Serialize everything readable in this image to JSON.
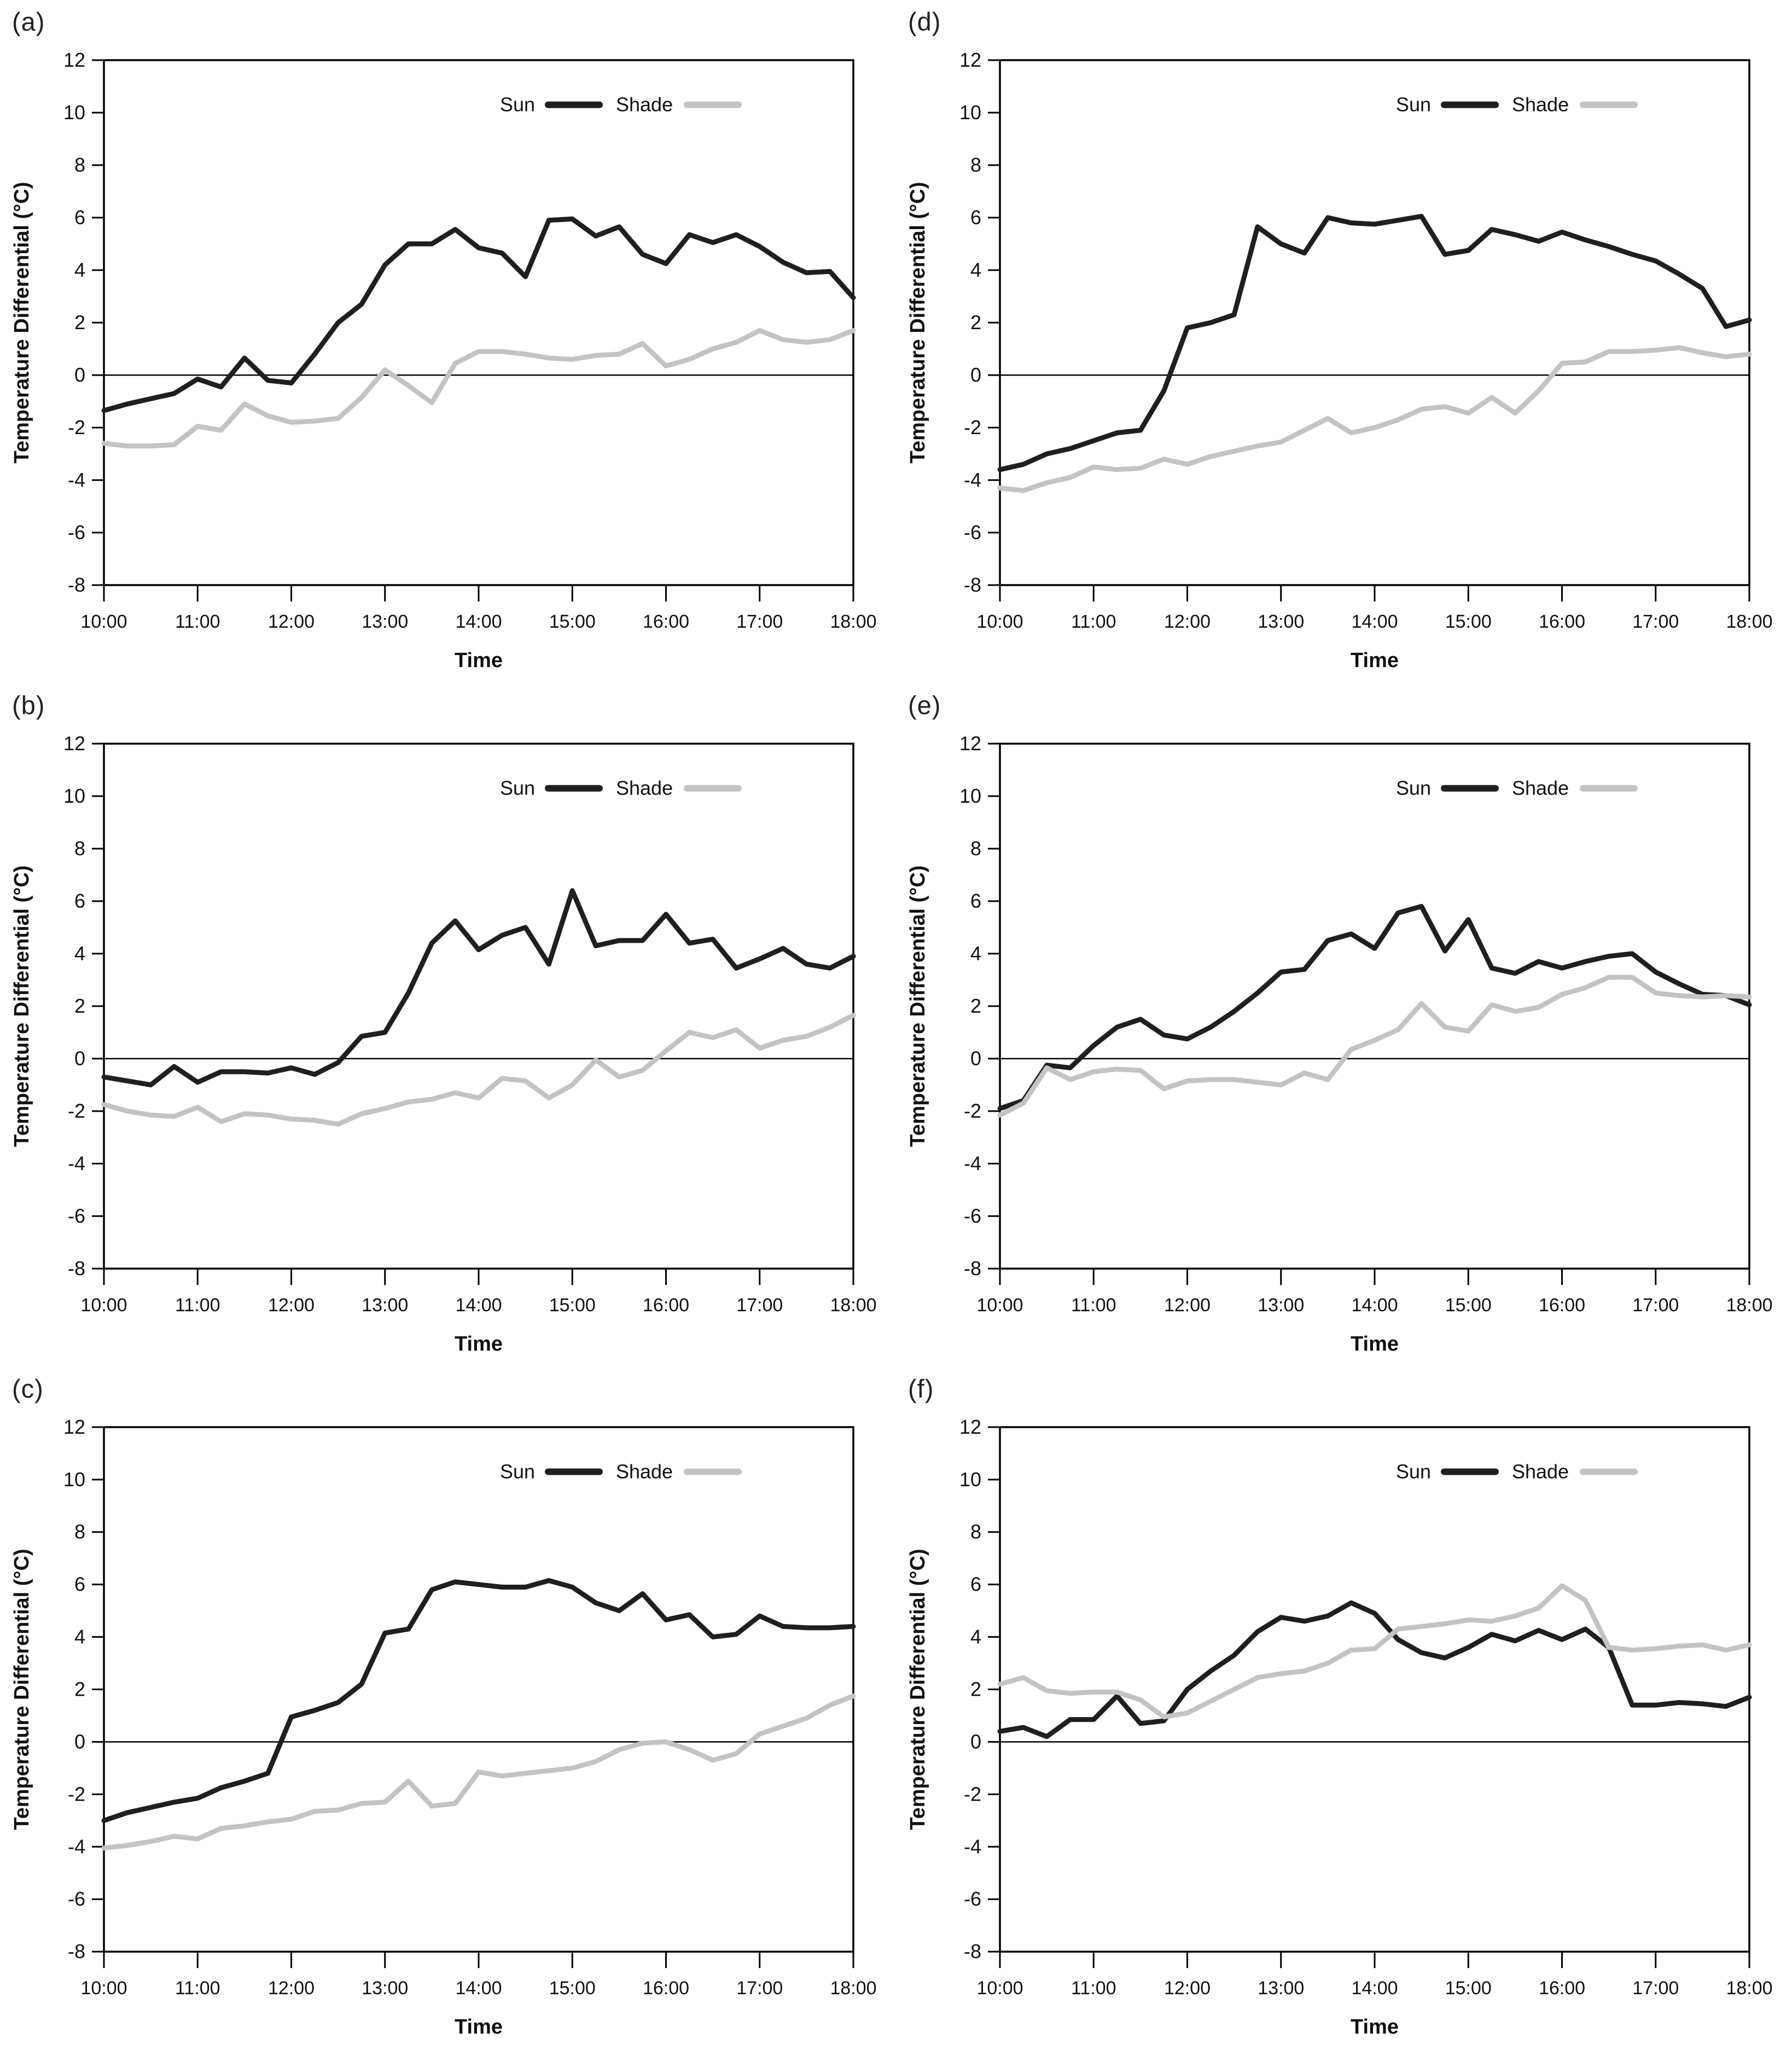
{
  "figure": {
    "description": "Six line charts comparing sun and shade temperature differentials over time",
    "colors": {
      "sun": "#1f1f1f",
      "shade": "#c3c3c3",
      "axis": "#000000"
    }
  },
  "chart_data": [
    {
      "type": "line",
      "letter": "(a)",
      "title": "",
      "xlabel": "Time",
      "ylabel": "Temperature Differential (°C)",
      "ylim": [
        -8,
        12
      ],
      "ytick_step": 2,
      "yticklabels": [
        "12",
        "10",
        "8",
        "6",
        "4",
        "2",
        "0",
        "-2",
        "-4",
        "-6",
        "-8"
      ],
      "xticklabels": [
        "10:00",
        "11:00",
        "12:00",
        "13:00",
        "14:00",
        "15:00",
        "16:00",
        "17:00",
        "18:00"
      ],
      "x_interval_minutes": 15,
      "grid": false,
      "legend_position": "top-center",
      "legend": [
        "Sun",
        "Shade"
      ],
      "series": [
        {
          "name": "Sun",
          "color": "#1f1f1f",
          "values": [
            -1.35,
            -1.1,
            -0.9,
            -0.7,
            -0.15,
            -0.45,
            0.65,
            -0.2,
            -0.3,
            0.8,
            2.0,
            2.7,
            4.2,
            5.0,
            5.0,
            5.55,
            4.85,
            4.65,
            3.75,
            5.9,
            5.95,
            5.3,
            5.65,
            4.6,
            4.25,
            5.35,
            5.05,
            5.35,
            4.9,
            4.3,
            3.9,
            3.95,
            2.95
          ]
        },
        {
          "name": "Shade",
          "color": "#c3c3c3",
          "values": [
            -2.6,
            -2.7,
            -2.7,
            -2.65,
            -1.95,
            -2.1,
            -1.1,
            -1.55,
            -1.8,
            -1.75,
            -1.65,
            -0.85,
            0.2,
            -0.4,
            -1.05,
            0.45,
            0.9,
            0.9,
            0.8,
            0.65,
            0.6,
            0.75,
            0.8,
            1.2,
            0.35,
            0.6,
            1.0,
            1.25,
            1.7,
            1.35,
            1.25,
            1.35,
            1.7
          ]
        }
      ]
    },
    {
      "type": "line",
      "letter": "(b)",
      "title": "",
      "xlabel": "Time",
      "ylabel": "Temperature Differential (°C)",
      "ylim": [
        -8,
        12
      ],
      "ytick_step": 2,
      "yticklabels": [
        "12",
        "10",
        "8",
        "6",
        "4",
        "2",
        "0",
        "-2",
        "-4",
        "-6",
        "-8"
      ],
      "xticklabels": [
        "10:00",
        "11:00",
        "12:00",
        "13:00",
        "14:00",
        "15:00",
        "16:00",
        "17:00",
        "18:00"
      ],
      "x_interval_minutes": 15,
      "grid": false,
      "legend_position": "top-center",
      "legend": [
        "Sun",
        "Shade"
      ],
      "series": [
        {
          "name": "Sun",
          "color": "#1f1f1f",
          "values": [
            -0.7,
            -0.85,
            -1.0,
            -0.3,
            -0.9,
            -0.5,
            -0.5,
            -0.55,
            -0.35,
            -0.6,
            -0.15,
            0.85,
            1.0,
            2.5,
            4.4,
            5.25,
            4.15,
            4.7,
            5.0,
            3.6,
            6.4,
            4.3,
            4.5,
            4.5,
            5.5,
            4.4,
            4.55,
            3.45,
            3.8,
            4.2,
            3.6,
            3.45,
            3.9
          ]
        },
        {
          "name": "Shade",
          "color": "#c3c3c3",
          "values": [
            -1.75,
            -2.0,
            -2.15,
            -2.2,
            -1.85,
            -2.4,
            -2.1,
            -2.15,
            -2.3,
            -2.35,
            -2.5,
            -2.1,
            -1.9,
            -1.65,
            -1.55,
            -1.3,
            -1.5,
            -0.75,
            -0.85,
            -1.5,
            -1.0,
            -0.05,
            -0.7,
            -0.45,
            0.3,
            1.0,
            0.8,
            1.1,
            0.4,
            0.7,
            0.85,
            1.2,
            1.65
          ]
        }
      ]
    },
    {
      "type": "line",
      "letter": "(c)",
      "title": "",
      "xlabel": "Time",
      "ylabel": "Temperature Differential (°C)",
      "ylim": [
        -8,
        12
      ],
      "ytick_step": 2,
      "yticklabels": [
        "12",
        "10",
        "8",
        "6",
        "4",
        "2",
        "0",
        "-2",
        "-4",
        "-6",
        "-8"
      ],
      "xticklabels": [
        "10:00",
        "11:00",
        "12:00",
        "13:00",
        "14:00",
        "15:00",
        "16:00",
        "17:00",
        "18:00"
      ],
      "x_interval_minutes": 15,
      "grid": false,
      "legend_position": "top-center",
      "legend": [
        "Sun",
        "Shade"
      ],
      "series": [
        {
          "name": "Sun",
          "color": "#1f1f1f",
          "values": [
            -3.0,
            -2.7,
            -2.5,
            -2.3,
            -2.15,
            -1.75,
            -1.5,
            -1.2,
            0.95,
            1.2,
            1.5,
            2.2,
            4.15,
            4.3,
            5.8,
            6.1,
            6.0,
            5.9,
            5.9,
            6.15,
            5.9,
            5.3,
            5.0,
            5.65,
            4.65,
            4.85,
            4.0,
            4.1,
            4.8,
            4.4,
            4.35,
            4.35,
            4.4
          ]
        },
        {
          "name": "Shade",
          "color": "#c3c3c3",
          "values": [
            -4.05,
            -3.95,
            -3.8,
            -3.6,
            -3.7,
            -3.3,
            -3.2,
            -3.05,
            -2.95,
            -2.65,
            -2.6,
            -2.35,
            -2.3,
            -1.5,
            -2.45,
            -2.35,
            -1.15,
            -1.3,
            -1.2,
            -1.1,
            -1.0,
            -0.75,
            -0.3,
            -0.05,
            0.0,
            -0.3,
            -0.7,
            -0.45,
            0.3,
            0.6,
            0.9,
            1.4,
            1.75
          ]
        }
      ]
    },
    {
      "type": "line",
      "letter": "(d)",
      "title": "",
      "xlabel": "Time",
      "ylabel": "Temperature Differential (°C)",
      "ylim": [
        -8,
        12
      ],
      "ytick_step": 2,
      "yticklabels": [
        "12",
        "10",
        "8",
        "6",
        "4",
        "2",
        "0",
        "-2",
        "-4",
        "-6",
        "-8"
      ],
      "xticklabels": [
        "10:00",
        "11:00",
        "12:00",
        "13:00",
        "14:00",
        "15:00",
        "16:00",
        "17:00",
        "18:00"
      ],
      "x_interval_minutes": 15,
      "grid": false,
      "legend_position": "top-center",
      "legend": [
        "Sun",
        "Shade"
      ],
      "series": [
        {
          "name": "Sun",
          "color": "#1f1f1f",
          "values": [
            -3.6,
            -3.4,
            -3.0,
            -2.8,
            -2.5,
            -2.2,
            -2.1,
            -0.6,
            1.8,
            2.0,
            2.3,
            5.65,
            5.0,
            4.65,
            6.0,
            5.8,
            5.75,
            5.9,
            6.05,
            4.6,
            4.75,
            5.55,
            5.35,
            5.1,
            5.45,
            5.15,
            4.9,
            4.6,
            4.35,
            3.85,
            3.3,
            1.85,
            2.1
          ]
        },
        {
          "name": "Shade",
          "color": "#c3c3c3",
          "values": [
            -4.3,
            -4.4,
            -4.1,
            -3.9,
            -3.5,
            -3.6,
            -3.55,
            -3.2,
            -3.4,
            -3.1,
            -2.9,
            -2.7,
            -2.55,
            -2.1,
            -1.65,
            -2.2,
            -2.0,
            -1.7,
            -1.3,
            -1.2,
            -1.45,
            -0.85,
            -1.45,
            -0.6,
            0.45,
            0.5,
            0.9,
            0.9,
            0.95,
            1.05,
            0.85,
            0.7,
            0.8
          ]
        }
      ]
    },
    {
      "type": "line",
      "letter": "(e)",
      "title": "",
      "xlabel": "Time",
      "ylabel": "Temperature Differential (°C)",
      "ylim": [
        -8,
        12
      ],
      "ytick_step": 2,
      "yticklabels": [
        "12",
        "10",
        "8",
        "6",
        "4",
        "2",
        "0",
        "-2",
        "-4",
        "-6",
        "-8"
      ],
      "xticklabels": [
        "10:00",
        "11:00",
        "12:00",
        "13:00",
        "14:00",
        "15:00",
        "16:00",
        "17:00",
        "18:00"
      ],
      "x_interval_minutes": 15,
      "grid": false,
      "legend_position": "top-center",
      "legend": [
        "Sun",
        "Shade"
      ],
      "series": [
        {
          "name": "Sun",
          "color": "#1f1f1f",
          "values": [
            -1.9,
            -1.6,
            -0.25,
            -0.35,
            0.5,
            1.2,
            1.5,
            0.9,
            0.75,
            1.2,
            1.8,
            2.5,
            3.3,
            3.4,
            4.5,
            4.75,
            4.2,
            5.55,
            5.8,
            4.1,
            5.3,
            3.45,
            3.25,
            3.7,
            3.45,
            3.7,
            3.9,
            4.0,
            3.3,
            2.85,
            2.45,
            2.4,
            2.05
          ]
        },
        {
          "name": "Shade",
          "color": "#c3c3c3",
          "values": [
            -2.15,
            -1.7,
            -0.35,
            -0.8,
            -0.5,
            -0.4,
            -0.45,
            -1.15,
            -0.85,
            -0.8,
            -0.8,
            -0.9,
            -1.0,
            -0.55,
            -0.8,
            0.35,
            0.7,
            1.1,
            2.1,
            1.2,
            1.05,
            2.05,
            1.8,
            1.95,
            2.45,
            2.7,
            3.1,
            3.1,
            2.5,
            2.4,
            2.35,
            2.4,
            2.35
          ]
        }
      ]
    },
    {
      "type": "line",
      "letter": "(f)",
      "title": "",
      "xlabel": "Time",
      "ylabel": "Temperature Differential (°C)",
      "ylim": [
        -8,
        12
      ],
      "ytick_step": 2,
      "yticklabels": [
        "12",
        "10",
        "8",
        "6",
        "4",
        "2",
        "0",
        "-2",
        "-4",
        "-6",
        "-8"
      ],
      "xticklabels": [
        "10:00",
        "11:00",
        "12:00",
        "13:00",
        "14:00",
        "15:00",
        "16:00",
        "17:00",
        "18:00"
      ],
      "x_interval_minutes": 15,
      "grid": false,
      "legend_position": "top-center",
      "legend": [
        "Sun",
        "Shade"
      ],
      "series": [
        {
          "name": "Sun",
          "color": "#1f1f1f",
          "values": [
            0.4,
            0.55,
            0.2,
            0.85,
            0.85,
            1.75,
            0.7,
            0.8,
            2.0,
            2.7,
            3.3,
            4.2,
            4.75,
            4.6,
            4.8,
            5.3,
            4.9,
            3.9,
            3.4,
            3.2,
            3.6,
            4.1,
            3.85,
            4.25,
            3.9,
            4.3,
            3.6,
            1.4,
            1.4,
            1.5,
            1.45,
            1.35,
            1.7
          ]
        },
        {
          "name": "Shade",
          "color": "#c3c3c3",
          "values": [
            2.2,
            2.45,
            1.95,
            1.85,
            1.9,
            1.9,
            1.6,
            0.95,
            1.1,
            1.55,
            2.0,
            2.45,
            2.6,
            2.7,
            3.0,
            3.5,
            3.55,
            4.3,
            4.4,
            4.5,
            4.65,
            4.6,
            4.8,
            5.1,
            5.95,
            5.4,
            3.6,
            3.5,
            3.55,
            3.65,
            3.7,
            3.5,
            3.7
          ]
        }
      ]
    }
  ]
}
